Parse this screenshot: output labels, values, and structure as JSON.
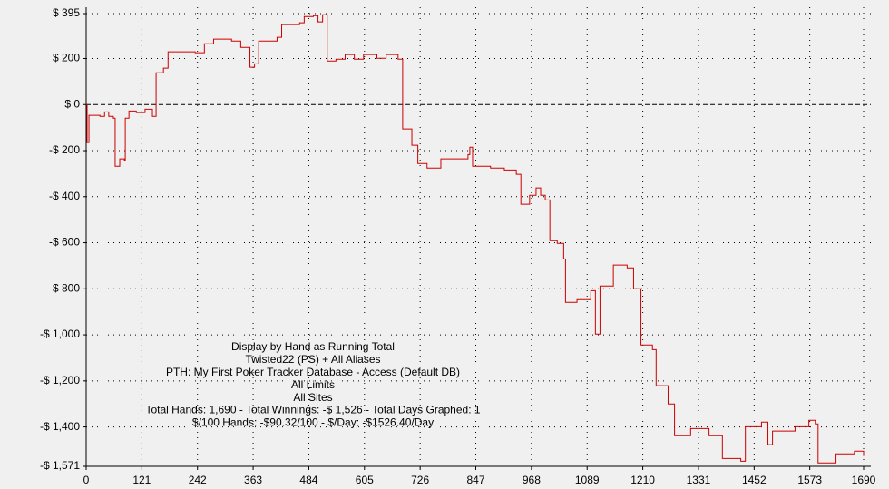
{
  "chart_data": {
    "type": "line",
    "step": true,
    "x": [
      0,
      2,
      6,
      30,
      40,
      49,
      59,
      63,
      73,
      83,
      85,
      93,
      109,
      128,
      144,
      152,
      168,
      178,
      208,
      237,
      257,
      277,
      316,
      336,
      356,
      366,
      375,
      415,
      425,
      464,
      474,
      494,
      504,
      514,
      524,
      543,
      563,
      583,
      603,
      632,
      652,
      678,
      688,
      708,
      721,
      741,
      771,
      800,
      830,
      834,
      840,
      879,
      909,
      935,
      945,
      964,
      978,
      988,
      998,
      1008,
      1024,
      1038,
      1042,
      1067,
      1097,
      1107,
      1117,
      1146,
      1176,
      1190,
      1206,
      1231,
      1239,
      1265,
      1279,
      1314,
      1354,
      1383,
      1423,
      1433,
      1468,
      1482,
      1492,
      1541,
      1571,
      1585,
      1591,
      1630,
      1670,
      1690
    ],
    "series": [
      {
        "color": "#cc0000",
        "values": [
          0,
          -165,
          -47,
          -51,
          -32,
          -51,
          -59,
          -268,
          -236,
          -244,
          -59,
          -28,
          -35,
          -20,
          -51,
          138,
          158,
          229,
          229,
          225,
          264,
          284,
          276,
          248,
          162,
          177,
          276,
          292,
          347,
          355,
          382,
          386,
          359,
          390,
          189,
          197,
          217,
          197,
          217,
          201,
          217,
          197,
          -106,
          -177,
          -256,
          -276,
          -236,
          -236,
          -217,
          -185,
          -268,
          -276,
          -284,
          -303,
          -433,
          -394,
          -362,
          -394,
          -414,
          -591,
          -603,
          -670,
          -859,
          -847,
          -808,
          -997,
          -788,
          -697,
          -709,
          -800,
          -1044,
          -1064,
          -1221,
          -1300,
          -1438,
          -1407,
          -1438,
          -1537,
          -1549,
          -1399,
          -1379,
          -1477,
          -1418,
          -1399,
          -1371,
          -1387,
          -1556,
          -1517,
          -1505,
          -1526
        ]
      }
    ],
    "xlim": [
      0,
      1690
    ],
    "xticks": [
      0,
      121,
      242,
      363,
      484,
      605,
      726,
      847,
      968,
      1089,
      1210,
      1331,
      1452,
      1573,
      1690
    ],
    "ylim": [
      -1571,
      395
    ],
    "yticks": [
      {
        "value": 395,
        "label": "$ 395"
      },
      {
        "value": 200,
        "label": "$ 200"
      },
      {
        "value": 0,
        "label": "$ 0"
      },
      {
        "value": -200,
        "label": "-$ 200"
      },
      {
        "value": -400,
        "label": "-$ 400"
      },
      {
        "value": -600,
        "label": "-$ 600"
      },
      {
        "value": -800,
        "label": "-$ 800"
      },
      {
        "value": -1000,
        "label": "-$ 1,000"
      },
      {
        "value": -1200,
        "label": "-$ 1,200"
      },
      {
        "value": -1400,
        "label": "-$ 1,400"
      },
      {
        "value": -1571,
        "label": "-$ 1,571"
      }
    ],
    "grid": true,
    "zero_line": true,
    "annotations": [
      "Display by Hand as Running Total",
      "Twisted22 (PS) + All Aliases",
      "PTH: My First Poker Tracker Database - Access (Default DB)",
      "All Limits",
      "All Sites",
      "Total Hands: 1,690 - Total Winnings: -$ 1,526 - Total Days Graphed: 1",
      "$/100 Hands: -$90.32/100 - $/Day: -$1526.40/Day"
    ]
  }
}
